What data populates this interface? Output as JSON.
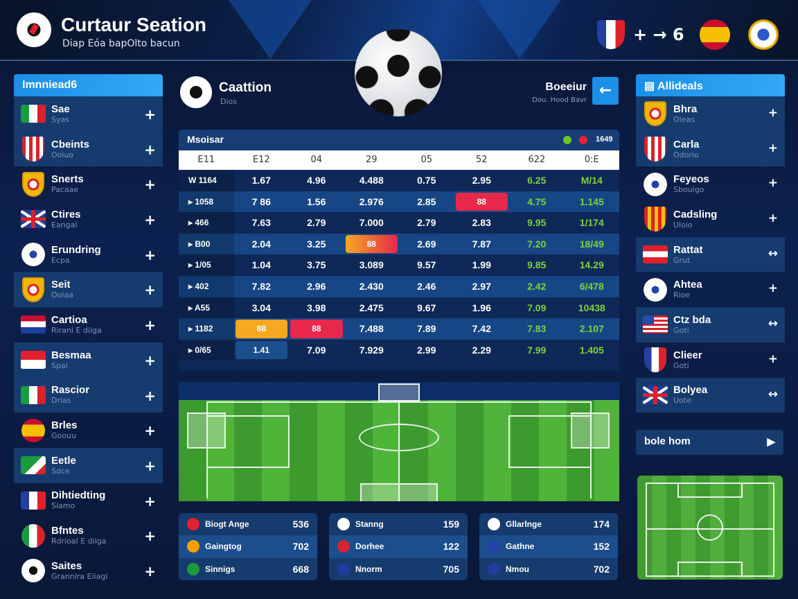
{
  "header": {
    "title": "Curtaur Seation",
    "subtitle": "Diap Eóa bapOlto bacun",
    "score_text": "+ → 6"
  },
  "left_panel": {
    "title": "Imnniead6",
    "items": [
      {
        "name": "Sae",
        "sub": "Syas",
        "icon": "f-it",
        "hl": true,
        "action": "+"
      },
      {
        "name": "Cbeints",
        "sub": "Ooiuo",
        "icon": "stripes",
        "hl": true,
        "action": "+"
      },
      {
        "name": "Snerts",
        "sub": "Pacaae",
        "icon": "crest",
        "hl": false,
        "action": "+"
      },
      {
        "name": "Ctires",
        "sub": "Eangal",
        "icon": "f-uk",
        "hl": false,
        "action": "+"
      },
      {
        "name": "Erundring",
        "sub": "Ecpa",
        "icon": "ball",
        "hl": false,
        "action": "+"
      },
      {
        "name": "Seit",
        "sub": "Ooiaa",
        "icon": "crest",
        "hl": true,
        "action": "+"
      },
      {
        "name": "Cartioa",
        "sub": "Rirani E diiga",
        "icon": "f-nl",
        "hl": false,
        "action": "+"
      },
      {
        "name": "Besmaa",
        "sub": "Spai",
        "icon": "f-id",
        "hl": true,
        "action": "+"
      },
      {
        "name": "Rascior",
        "sub": "Drias",
        "icon": "f-it",
        "hl": true,
        "action": "+"
      },
      {
        "name": "Brles",
        "sub": "Goouu",
        "icon": "f-es-round",
        "hl": false,
        "action": "+"
      },
      {
        "name": "Eetle",
        "sub": "Sdce",
        "icon": "f-gr",
        "hl": true,
        "action": "+"
      },
      {
        "name": "Dihtiedting",
        "sub": "Siamo",
        "icon": "f-fr",
        "hl": false,
        "action": "+"
      },
      {
        "name": "Bfntes",
        "sub": "Rdrioal E diiga",
        "icon": "f-mx",
        "hl": false,
        "action": "+"
      },
      {
        "name": "Saites",
        "sub": "Grannira Eiiagi",
        "icon": "ballbw",
        "hl": false,
        "action": "+"
      }
    ]
  },
  "center": {
    "team_name": "Caattion",
    "team_sub": "Dios",
    "right_label": "Boeeiur",
    "right_sub": "Dou. Hood Bavr"
  },
  "odds_table": {
    "title": "Msoisar",
    "status_text": "1649",
    "status_colors": [
      "#6cc62a",
      "#e8203a"
    ],
    "columns": [
      "E11",
      "E12",
      "04",
      "29",
      "05",
      "52",
      "622",
      "0:E"
    ],
    "rows": [
      [
        {
          "v": "W 1164"
        },
        {
          "v": "1.67"
        },
        {
          "v": "4.96"
        },
        {
          "v": "4.488"
        },
        {
          "v": "0.75"
        },
        {
          "v": "2.95"
        },
        {
          "v": "6.25",
          "g": 1
        },
        {
          "v": "M/14",
          "g": 1
        }
      ],
      [
        {
          "v": "▸ 1058"
        },
        {
          "v": "7 86"
        },
        {
          "v": "1.56"
        },
        {
          "v": "2.976"
        },
        {
          "v": "2.85"
        },
        {
          "v": "88",
          "b": "b-red"
        },
        {
          "v": "4.75",
          "g": 1
        },
        {
          "v": "1.145",
          "g": 1
        }
      ],
      [
        {
          "v": "▸ 466"
        },
        {
          "v": "7.63"
        },
        {
          "v": "2.79"
        },
        {
          "v": "7.000"
        },
        {
          "v": "2.79"
        },
        {
          "v": "2.83"
        },
        {
          "v": "9.95",
          "g": 1
        },
        {
          "v": "1/174",
          "g": 1
        }
      ],
      [
        {
          "v": "▸ B00"
        },
        {
          "v": "2.04"
        },
        {
          "v": "3.25"
        },
        {
          "v": "88",
          "b": "b-grad"
        },
        {
          "v": "2.69"
        },
        {
          "v": "7.87"
        },
        {
          "v": "7.20",
          "g": 1
        },
        {
          "v": "18/49",
          "g": 1
        }
      ],
      [
        {
          "v": "▸ 1/05"
        },
        {
          "v": "1.04"
        },
        {
          "v": "3.75"
        },
        {
          "v": "3.089"
        },
        {
          "v": "9.57"
        },
        {
          "v": "1.99"
        },
        {
          "v": "9.85",
          "g": 1
        },
        {
          "v": "14.29",
          "g": 1
        }
      ],
      [
        {
          "v": "▸ 402"
        },
        {
          "v": "7.82"
        },
        {
          "v": "2.96"
        },
        {
          "v": "2.430"
        },
        {
          "v": "2.46"
        },
        {
          "v": "2.97"
        },
        {
          "v": "2.42",
          "g": 1
        },
        {
          "v": "6/478",
          "g": 1
        }
      ],
      [
        {
          "v": "▸ A55"
        },
        {
          "v": "3.04"
        },
        {
          "v": "3.98"
        },
        {
          "v": "2.475"
        },
        {
          "v": "9.67"
        },
        {
          "v": "1.96"
        },
        {
          "v": "7.09",
          "g": 1
        },
        {
          "v": "10438",
          "g": 1
        }
      ],
      [
        {
          "v": "▸ 1182"
        },
        {
          "v": "88",
          "b": "b-org"
        },
        {
          "v": "88",
          "b": "b-red"
        },
        {
          "v": "7.488"
        },
        {
          "v": "7.89"
        },
        {
          "v": "7.42"
        },
        {
          "v": "7.83",
          "g": 1
        },
        {
          "v": "2.107",
          "g": 1
        }
      ],
      [
        {
          "v": "▸ 0/65"
        },
        {
          "v": "1.41",
          "b": "b-blue"
        },
        {
          "v": "7.09"
        },
        {
          "v": "7.929"
        },
        {
          "v": "2.99"
        },
        {
          "v": "2.29"
        },
        {
          "v": "7.99",
          "g": 1
        },
        {
          "v": "1.405",
          "g": 1
        }
      ]
    ]
  },
  "stat_cards": [
    [
      {
        "label": "Biogt Ange",
        "value": "536",
        "icon": "#e02030"
      },
      {
        "label": "Gaingtog",
        "value": "702",
        "icon": "#f2a000"
      },
      {
        "label": "Sinnigs",
        "value": "668",
        "icon": "#1c9a3e"
      }
    ],
    [
      {
        "label": "Stanng",
        "value": "159",
        "icon": "#ffffff"
      },
      {
        "label": "Dorhee",
        "value": "122",
        "icon": "#d8232e"
      },
      {
        "label": "Nnorm",
        "value": "705",
        "icon": "#1e3d9c"
      }
    ],
    [
      {
        "label": "Gllarlnge",
        "value": "174",
        "icon": "#ffffff"
      },
      {
        "label": "Gathne",
        "value": "152",
        "icon": "#2144a8"
      },
      {
        "label": "Nmou",
        "value": "702",
        "icon": "#1e3d9c"
      }
    ]
  ],
  "right_panel": {
    "title": "Allideals",
    "items": [
      {
        "name": "Bhra",
        "sub": "Oleas",
        "icon": "crest",
        "hl": true,
        "action": "+"
      },
      {
        "name": "Carla",
        "sub": "Odorio",
        "icon": "stripes",
        "hl": true,
        "action": "+"
      },
      {
        "name": "Feyeos",
        "sub": "Sbouigo",
        "icon": "ball",
        "hl": false,
        "action": "+"
      },
      {
        "name": "Cadsling",
        "sub": "Uloio",
        "icon": "ystripes",
        "hl": false,
        "action": "+"
      },
      {
        "name": "Rattat",
        "sub": "Grut",
        "icon": "f-at",
        "hl": true,
        "action": "↔"
      },
      {
        "name": "Ahtea",
        "sub": "Rioe",
        "icon": "ball",
        "hl": false,
        "action": "+"
      },
      {
        "name": "Ctz bda",
        "sub": "Goti",
        "icon": "f-us",
        "hl": true,
        "action": "↔"
      },
      {
        "name": "Clieer",
        "sub": "Goti",
        "icon": "f-fr-shield",
        "hl": false,
        "action": "+"
      },
      {
        "name": "Bolyea",
        "sub": "Uote",
        "icon": "f-uk",
        "hl": true,
        "action": "↔"
      }
    ],
    "button_label": "bole hom"
  }
}
